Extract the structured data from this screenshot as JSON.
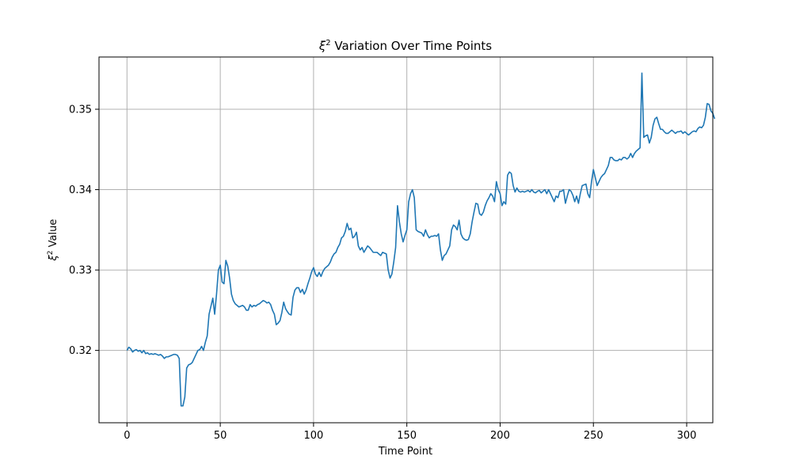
{
  "chart_data": {
    "type": "line",
    "title_prefix": "ξ",
    "title_sup": "2",
    "title_rest": " Variation Over Time Points",
    "xlabel": "Time Point",
    "ylabel_prefix": "ξ",
    "ylabel_sup": "2",
    "ylabel_rest": " Value",
    "xlim": [
      -15,
      314
    ],
    "ylim": [
      0.311,
      0.3565
    ],
    "x_ticks": [
      0,
      50,
      100,
      150,
      200,
      250,
      300
    ],
    "y_ticks": [
      0.32,
      0.33,
      0.34,
      0.35
    ],
    "y_tick_labels": [
      "0.32",
      "0.33",
      "0.34",
      "0.35"
    ],
    "grid": true,
    "line_color": "#1f77b4",
    "series": [
      {
        "x_start": 0,
        "x_step": 1,
        "values": [
          0.32,
          0.3204,
          0.3202,
          0.3198,
          0.32,
          0.3201,
          0.3199,
          0.32,
          0.3197,
          0.32,
          0.3196,
          0.3197,
          0.3195,
          0.3196,
          0.3195,
          0.3196,
          0.3195,
          0.3194,
          0.3195,
          0.3193,
          0.319,
          0.3192,
          0.3192,
          0.3193,
          0.3194,
          0.3195,
          0.3195,
          0.3194,
          0.319,
          0.3131,
          0.3131,
          0.3142,
          0.3178,
          0.3182,
          0.3183,
          0.3185,
          0.319,
          0.3195,
          0.32,
          0.3201,
          0.3205,
          0.32,
          0.321,
          0.3218,
          0.3245,
          0.3255,
          0.3265,
          0.3245,
          0.327,
          0.33,
          0.3306,
          0.3285,
          0.3283,
          0.3312,
          0.3305,
          0.329,
          0.327,
          0.3262,
          0.3258,
          0.3256,
          0.3254,
          0.3255,
          0.3256,
          0.3254,
          0.325,
          0.325,
          0.3257,
          0.3254,
          0.3256,
          0.3255,
          0.3257,
          0.3258,
          0.326,
          0.3262,
          0.3261,
          0.3259,
          0.326,
          0.3257,
          0.325,
          0.3245,
          0.3232,
          0.3234,
          0.3237,
          0.3247,
          0.326,
          0.3252,
          0.3248,
          0.3245,
          0.3244,
          0.3266,
          0.3275,
          0.3278,
          0.3278,
          0.3272,
          0.3276,
          0.327,
          0.3275,
          0.3283,
          0.329,
          0.3298,
          0.3303,
          0.3295,
          0.3292,
          0.3297,
          0.3292,
          0.3298,
          0.3302,
          0.3304,
          0.3306,
          0.331,
          0.3316,
          0.332,
          0.3322,
          0.3328,
          0.3332,
          0.334,
          0.3342,
          0.3348,
          0.3358,
          0.335,
          0.3352,
          0.334,
          0.3342,
          0.3347,
          0.333,
          0.3325,
          0.3328,
          0.3322,
          0.3326,
          0.333,
          0.3328,
          0.3325,
          0.3322,
          0.3322,
          0.3322,
          0.332,
          0.3318,
          0.3322,
          0.3321,
          0.332,
          0.33,
          0.329,
          0.3295,
          0.331,
          0.3328,
          0.338,
          0.336,
          0.3345,
          0.3335,
          0.3343,
          0.335,
          0.3385,
          0.3395,
          0.34,
          0.339,
          0.335,
          0.3348,
          0.3347,
          0.3346,
          0.3342,
          0.335,
          0.3344,
          0.334,
          0.3342,
          0.3342,
          0.3343,
          0.3342,
          0.3345,
          0.3325,
          0.3312,
          0.3318,
          0.332,
          0.3325,
          0.333,
          0.335,
          0.3356,
          0.3354,
          0.335,
          0.3362,
          0.3345,
          0.334,
          0.3338,
          0.3337,
          0.3338,
          0.3345,
          0.336,
          0.3372,
          0.3383,
          0.3382,
          0.337,
          0.3368,
          0.3372,
          0.338,
          0.3386,
          0.339,
          0.3395,
          0.3392,
          0.3385,
          0.341,
          0.34,
          0.3395,
          0.338,
          0.3385,
          0.3382,
          0.3418,
          0.3422,
          0.342,
          0.3405,
          0.3397,
          0.3402,
          0.3398,
          0.3397,
          0.3398,
          0.3397,
          0.3398,
          0.3399,
          0.3397,
          0.34,
          0.3397,
          0.3396,
          0.3398,
          0.3399,
          0.3396,
          0.3398,
          0.34,
          0.3395,
          0.34,
          0.3395,
          0.339,
          0.3385,
          0.3392,
          0.339,
          0.3398,
          0.3398,
          0.34,
          0.3383,
          0.3392,
          0.34,
          0.3398,
          0.3393,
          0.3385,
          0.3392,
          0.3383,
          0.3395,
          0.3405,
          0.3406,
          0.3407,
          0.3395,
          0.339,
          0.341,
          0.3425,
          0.3415,
          0.3405,
          0.341,
          0.3415,
          0.3418,
          0.342,
          0.3425,
          0.343,
          0.344,
          0.344,
          0.3437,
          0.3436,
          0.3436,
          0.3438,
          0.3437,
          0.344,
          0.344,
          0.3438,
          0.344,
          0.3445,
          0.344,
          0.3445,
          0.3448,
          0.345,
          0.3452,
          0.3545,
          0.3465,
          0.3467,
          0.3468,
          0.3458,
          0.3465,
          0.348,
          0.3488,
          0.349,
          0.3482,
          0.3475,
          0.3475,
          0.3472,
          0.347,
          0.347,
          0.3472,
          0.3474,
          0.3472,
          0.347,
          0.3472,
          0.3472,
          0.3473,
          0.347,
          0.3472,
          0.347,
          0.3468,
          0.347,
          0.3472,
          0.3473,
          0.3472,
          0.3476,
          0.3478,
          0.3477,
          0.348,
          0.349,
          0.3507,
          0.3506,
          0.3498,
          0.3495,
          0.3488
        ]
      }
    ]
  }
}
